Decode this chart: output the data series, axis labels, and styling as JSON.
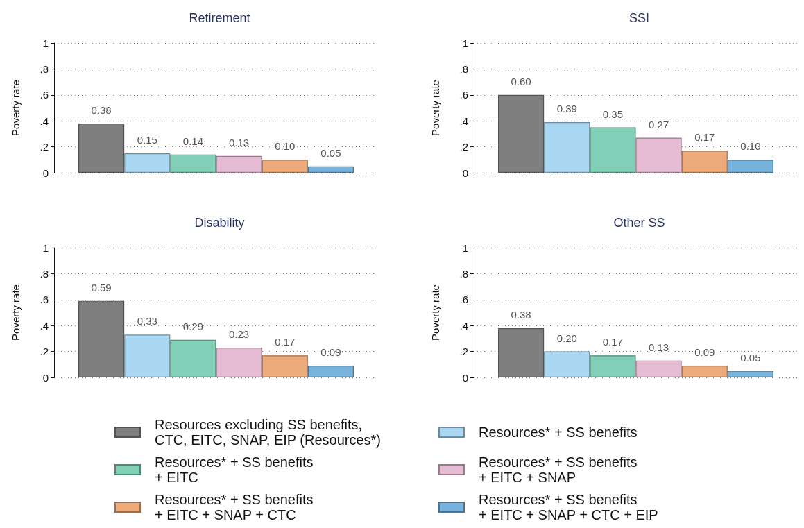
{
  "chart_data": [
    {
      "type": "bar",
      "title": "Retirement",
      "ylabel": "Poverty rate",
      "categories": [
        null
      ],
      "ylim": [
        0,
        1
      ],
      "yticks": [
        {
          "value": 0,
          "label": "0"
        },
        {
          "value": 0.2,
          "label": ".2"
        },
        {
          "value": 0.4,
          "label": ".4"
        },
        {
          "value": 0.6,
          "label": ".6"
        },
        {
          "value": 0.8,
          "label": ".8"
        },
        {
          "value": 1,
          "label": "1"
        }
      ],
      "grid": "y",
      "legend": "bottom",
      "series": [
        {
          "name": "Resources excluding SS benefits, CTC, EITC, SNAP, EIP (Resources*)",
          "color": "#7f7f7f",
          "values": [
            0.38
          ],
          "value_labels": [
            "0.38"
          ]
        },
        {
          "name": "Resources* + SS benefits",
          "color": "#aad8f3",
          "values": [
            0.15
          ],
          "value_labels": [
            "0.15"
          ]
        },
        {
          "name": "Resources* + SS benefits + EITC",
          "color": "#80cfb6",
          "values": [
            0.14
          ],
          "value_labels": [
            "0.14"
          ]
        },
        {
          "name": "Resources* + SS benefits + EITC + SNAP",
          "color": "#e6bcd5",
          "values": [
            0.13
          ],
          "value_labels": [
            "0.13"
          ]
        },
        {
          "name": "Resources* + SS benefits + EITC + SNAP + CTC",
          "color": "#edab7b",
          "values": [
            0.1
          ],
          "value_labels": [
            "0.10"
          ]
        },
        {
          "name": "Resources* + SS benefits + EITC + SNAP + CTC + EIP",
          "color": "#77b3dc",
          "values": [
            0.05
          ],
          "value_labels": [
            "0.05"
          ]
        }
      ]
    },
    {
      "type": "bar",
      "title": "SSI",
      "ylabel": "Poverty rate",
      "categories": [
        null
      ],
      "ylim": [
        0,
        1
      ],
      "yticks": [
        {
          "value": 0,
          "label": "0"
        },
        {
          "value": 0.2,
          "label": ".2"
        },
        {
          "value": 0.4,
          "label": ".4"
        },
        {
          "value": 0.6,
          "label": ".6"
        },
        {
          "value": 0.8,
          "label": ".8"
        },
        {
          "value": 1,
          "label": "1"
        }
      ],
      "grid": "y",
      "series": [
        {
          "color": "#7f7f7f",
          "values": [
            0.6
          ],
          "value_labels": [
            "0.60"
          ]
        },
        {
          "color": "#aad8f3",
          "values": [
            0.39
          ],
          "value_labels": [
            "0.39"
          ]
        },
        {
          "color": "#80cfb6",
          "values": [
            0.35
          ],
          "value_labels": [
            "0.35"
          ]
        },
        {
          "color": "#e6bcd5",
          "values": [
            0.27
          ],
          "value_labels": [
            "0.27"
          ]
        },
        {
          "color": "#edab7b",
          "values": [
            0.17
          ],
          "value_labels": [
            "0.17"
          ]
        },
        {
          "color": "#77b3dc",
          "values": [
            0.1
          ],
          "value_labels": [
            "0.10"
          ]
        }
      ]
    },
    {
      "type": "bar",
      "title": "Disability",
      "ylabel": "Poverty rate",
      "categories": [
        null
      ],
      "ylim": [
        0,
        1
      ],
      "yticks": [
        {
          "value": 0,
          "label": "0"
        },
        {
          "value": 0.2,
          "label": ".2"
        },
        {
          "value": 0.4,
          "label": ".4"
        },
        {
          "value": 0.6,
          "label": ".6"
        },
        {
          "value": 0.8,
          "label": ".8"
        },
        {
          "value": 1,
          "label": "1"
        }
      ],
      "grid": "y",
      "series": [
        {
          "color": "#7f7f7f",
          "values": [
            0.59
          ],
          "value_labels": [
            "0.59"
          ]
        },
        {
          "color": "#aad8f3",
          "values": [
            0.33
          ],
          "value_labels": [
            "0.33"
          ]
        },
        {
          "color": "#80cfb6",
          "values": [
            0.29
          ],
          "value_labels": [
            "0.29"
          ]
        },
        {
          "color": "#e6bcd5",
          "values": [
            0.23
          ],
          "value_labels": [
            "0.23"
          ]
        },
        {
          "color": "#edab7b",
          "values": [
            0.17
          ],
          "value_labels": [
            "0.17"
          ]
        },
        {
          "color": "#77b3dc",
          "values": [
            0.09
          ],
          "value_labels": [
            "0.09"
          ]
        }
      ]
    },
    {
      "type": "bar",
      "title": "Other SS",
      "ylabel": "Poverty rate",
      "categories": [
        null
      ],
      "ylim": [
        0,
        1
      ],
      "yticks": [
        {
          "value": 0,
          "label": "0"
        },
        {
          "value": 0.2,
          "label": ".2"
        },
        {
          "value": 0.4,
          "label": ".4"
        },
        {
          "value": 0.6,
          "label": ".6"
        },
        {
          "value": 0.8,
          "label": ".8"
        },
        {
          "value": 1,
          "label": "1"
        }
      ],
      "grid": "y",
      "series": [
        {
          "color": "#7f7f7f",
          "values": [
            0.38
          ],
          "value_labels": [
            "0.38"
          ]
        },
        {
          "color": "#aad8f3",
          "values": [
            0.2
          ],
          "value_labels": [
            "0.20"
          ]
        },
        {
          "color": "#80cfb6",
          "values": [
            0.17
          ],
          "value_labels": [
            "0.17"
          ]
        },
        {
          "color": "#e6bcd5",
          "values": [
            0.13
          ],
          "value_labels": [
            "0.13"
          ]
        },
        {
          "color": "#edab7b",
          "values": [
            0.09
          ],
          "value_labels": [
            "0.09"
          ]
        },
        {
          "color": "#77b3dc",
          "values": [
            0.05
          ],
          "value_labels": [
            "0.05"
          ]
        }
      ]
    }
  ]
}
